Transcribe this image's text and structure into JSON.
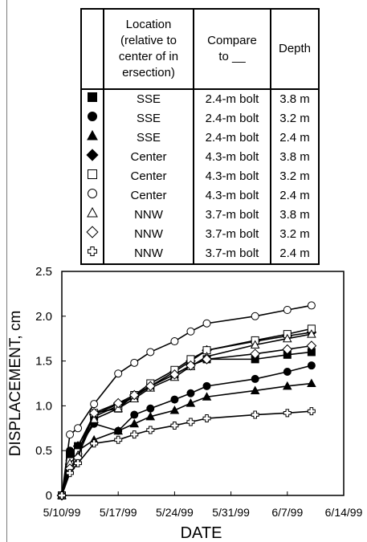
{
  "table": {
    "headers": {
      "location": "Location (relative to center of intersection)",
      "compare": "Compare to __",
      "depth": "Depth"
    }
  },
  "chart_data": {
    "type": "line",
    "xlabel": "DATE",
    "ylabel": "DISPLACEMENT, cm",
    "x_ticks": [
      "5/10/99",
      "5/17/99",
      "5/24/99",
      "5/31/99",
      "6/7/99",
      "6/14/99"
    ],
    "y_ticks": [
      "0",
      "0.5",
      "1.0",
      "1.5",
      "2.0",
      "2.5"
    ],
    "xlim": [
      "1999-05-10",
      "1999-06-14"
    ],
    "ylim": [
      0,
      2.5
    ],
    "grid": false,
    "legend": "table-above",
    "x": [
      "1999-05-10",
      "1999-05-11",
      "1999-05-12",
      "1999-05-14",
      "1999-05-17",
      "1999-05-19",
      "1999-05-21",
      "1999-05-24",
      "1999-05-26",
      "1999-05-28",
      "1999-06-03",
      "1999-06-07",
      "1999-06-10"
    ],
    "series": [
      {
        "location": "SSE",
        "compare": "2.4-m bolt",
        "depth": "3.8 m",
        "marker": "square-filled",
        "values": [
          0,
          0.45,
          0.55,
          0.88,
          1.0,
          1.1,
          1.22,
          1.35,
          1.45,
          1.52,
          1.52,
          1.57,
          1.6
        ]
      },
      {
        "location": "SSE",
        "compare": "2.4-m bolt",
        "depth": "3.2 m",
        "marker": "circle-filled",
        "values": [
          0,
          0.5,
          0.52,
          0.8,
          0.72,
          0.9,
          0.97,
          1.07,
          1.14,
          1.22,
          1.3,
          1.38,
          1.45
        ]
      },
      {
        "location": "SSE",
        "compare": "2.4-m bolt",
        "depth": "2.4 m",
        "marker": "triangle-filled",
        "values": [
          0,
          0.43,
          0.5,
          0.62,
          0.72,
          0.8,
          0.88,
          0.95,
          1.03,
          1.1,
          1.17,
          1.22,
          1.25
        ]
      },
      {
        "location": "Center",
        "compare": "4.3-m bolt",
        "depth": "3.8 m",
        "marker": "diamond-filled",
        "values": [
          0,
          0.35,
          0.55,
          0.9,
          1.02,
          1.1,
          1.22,
          1.38,
          1.5,
          1.62,
          1.72,
          1.78,
          1.82
        ]
      },
      {
        "location": "Center",
        "compare": "4.3-m bolt",
        "depth": "3.2 m",
        "marker": "square-open",
        "values": [
          0,
          0.38,
          0.48,
          0.92,
          0.97,
          1.12,
          1.25,
          1.4,
          1.52,
          1.62,
          1.73,
          1.8,
          1.86
        ]
      },
      {
        "location": "Center",
        "compare": "4.3-m bolt",
        "depth": "2.4 m",
        "marker": "circle-open",
        "values": [
          0,
          0.68,
          0.75,
          1.02,
          1.36,
          1.48,
          1.6,
          1.72,
          1.83,
          1.92,
          2.0,
          2.07,
          2.12
        ]
      },
      {
        "location": "NNW",
        "compare": "3.7-m bolt",
        "depth": "3.8 m",
        "marker": "triangle-open",
        "values": [
          0,
          0.36,
          0.45,
          0.85,
          0.97,
          1.08,
          1.2,
          1.32,
          1.44,
          1.55,
          1.68,
          1.75,
          1.8
        ]
      },
      {
        "location": "NNW",
        "compare": "3.7-m bolt",
        "depth": "3.2 m",
        "marker": "diamond-open",
        "values": [
          0,
          0.3,
          0.42,
          0.92,
          1.03,
          1.12,
          1.22,
          1.35,
          1.45,
          1.52,
          1.58,
          1.63,
          1.67
        ]
      },
      {
        "location": "NNW",
        "compare": "3.7-m bolt",
        "depth": "2.4 m",
        "marker": "cross-open",
        "values": [
          0,
          0.25,
          0.36,
          0.58,
          0.62,
          0.68,
          0.73,
          0.78,
          0.82,
          0.86,
          0.9,
          0.92,
          0.94
        ]
      }
    ]
  }
}
